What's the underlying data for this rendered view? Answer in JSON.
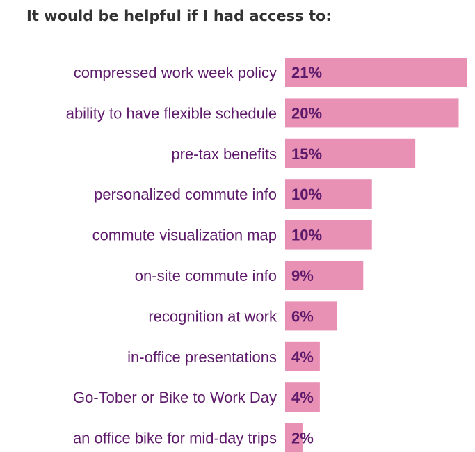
{
  "colors": {
    "bar": "#e891b5",
    "label_text": "#5e1a6a",
    "title_text": "#333333"
  },
  "chart_data": {
    "type": "bar",
    "orientation": "horizontal",
    "title": "It would be helpful if I had access to:",
    "categories": [
      "compressed work week policy",
      "ability to have flexible schedule",
      "pre-tax benefits",
      "personalized commute info",
      "commute visualization map",
      "on-site commute info",
      "recognition at work",
      "in-office presentations",
      "Go-Tober or Bike to Work Day",
      "an office bike for mid-day trips"
    ],
    "values": [
      21,
      20,
      15,
      10,
      10,
      9,
      6,
      4,
      4,
      2
    ],
    "value_labels": [
      "21%",
      "20%",
      "15%",
      "10%",
      "10%",
      "9%",
      "6%",
      "4%",
      "4%",
      "2%"
    ],
    "unit": "%",
    "xlim": [
      0,
      21
    ],
    "grid": false,
    "legend": "none"
  }
}
